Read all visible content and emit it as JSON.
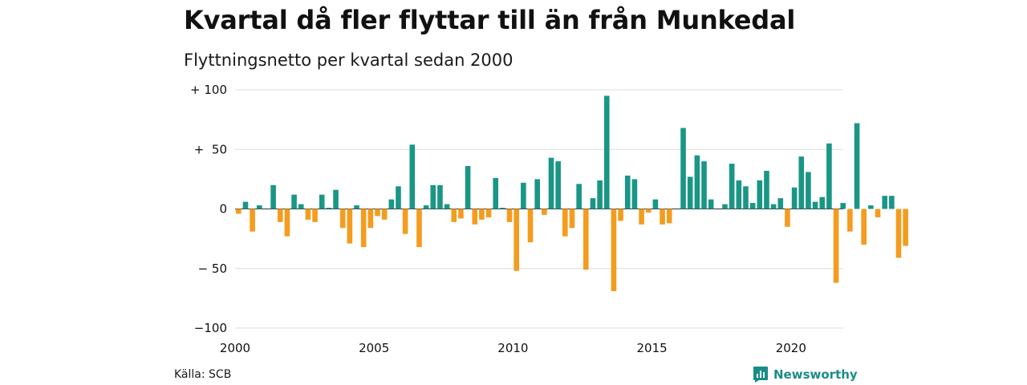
{
  "title": "Kvartal då fler flyttar till än från Munkedal",
  "subtitle": "Flyttningsnetto per kvartal sedan 2000",
  "source": "Källa: SCB",
  "brand": {
    "name": "Newsworthy",
    "icon": "newsworthy-logo-icon"
  },
  "colors": {
    "positive": "#1a9686",
    "negative": "#f49c1e",
    "grid": "#dcdcdc",
    "zero_line": "#333333"
  },
  "chart_data": {
    "type": "bar",
    "title": "Kvartal då fler flyttar till än från Munkedal",
    "subtitle": "Flyttningsnetto per kvartal sedan 2000",
    "xlabel": "",
    "ylabel": "",
    "ylim": [
      -100,
      100
    ],
    "y_ticks": [
      100,
      50,
      0,
      -50,
      -100
    ],
    "y_tick_labels": [
      "+ 100",
      "+  50",
      "0",
      "− 50",
      "−100"
    ],
    "x_tick_labels": [
      "2000",
      "2005",
      "2010",
      "2015",
      "2020"
    ],
    "x_tick_years": [
      2000,
      2005,
      2010,
      2015,
      2020
    ],
    "grid": true,
    "start_year": 2000,
    "periods_per_year": 4,
    "values": [
      -4,
      6,
      -19,
      3,
      0,
      20,
      -11,
      -23,
      12,
      4,
      -9,
      -11,
      12,
      1,
      16,
      -16,
      -29,
      3,
      -32,
      -16,
      -6,
      -9,
      8,
      19,
      -21,
      54,
      -32,
      3,
      20,
      20,
      4,
      -11,
      -8,
      36,
      -13,
      -9,
      -7,
      26,
      1,
      -11,
      -52,
      22,
      -28,
      25,
      -5,
      43,
      40,
      -23,
      -16,
      21,
      -51,
      9,
      24,
      95,
      -69,
      -10,
      28,
      25,
      -13,
      -3,
      8,
      -13,
      -12,
      0,
      68,
      27,
      45,
      40,
      8,
      0,
      4,
      38,
      24,
      19,
      5,
      24,
      32,
      4,
      9,
      -15,
      18,
      44,
      31,
      6,
      10,
      55,
      -62,
      5,
      -19,
      72,
      -30,
      3,
      -7,
      11,
      11,
      -41,
      -31
    ]
  }
}
